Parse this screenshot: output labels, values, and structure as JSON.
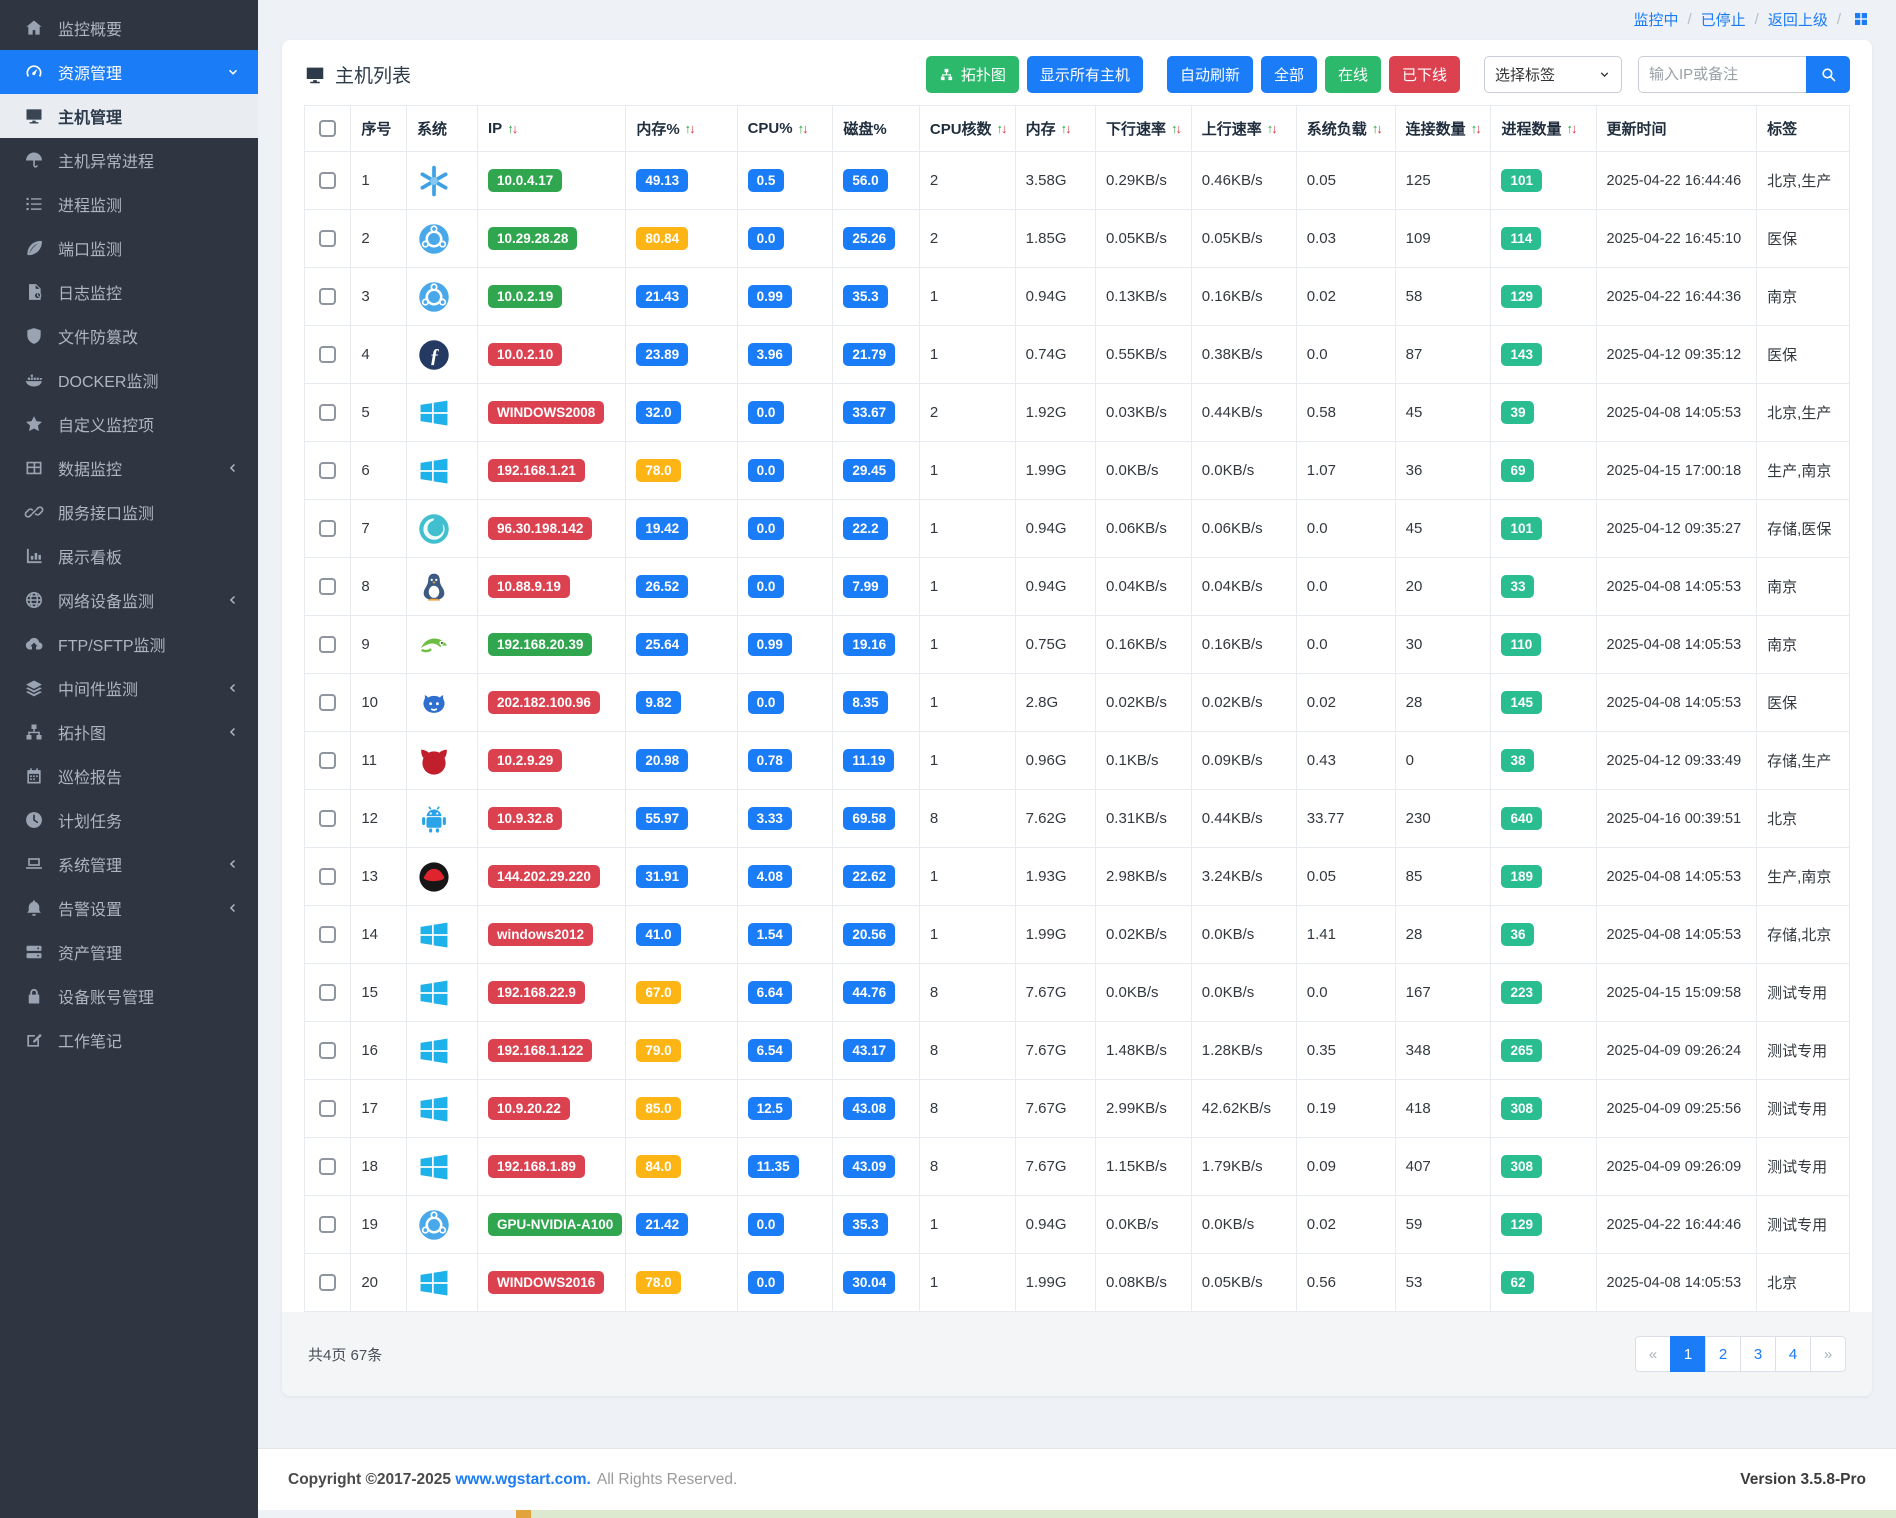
{
  "colors": {
    "sidebar_bg": "#2f3642",
    "accent_blue": "#1b7cf7",
    "badge_green": "#30a64f",
    "badge_red": "#dc4150",
    "badge_blue": "#1b7cf7",
    "badge_yellow": "#fdb515",
    "badge_teal": "#29bd8f",
    "button_green": "#2cb96c",
    "button_red": "#dc4150",
    "sort_up_green": "#28a745",
    "sort_down_red": "#dc3545"
  },
  "sidebar": {
    "items": [
      {
        "icon": "home",
        "label": "监控概要"
      },
      {
        "icon": "gauge",
        "label": "资源管理",
        "state": "active-parent",
        "chevron": "down"
      },
      {
        "icon": "monitor",
        "label": "主机管理",
        "state": "active-child"
      },
      {
        "icon": "umbrella",
        "label": "主机异常进程"
      },
      {
        "icon": "tasks",
        "label": "进程监测"
      },
      {
        "icon": "leaf",
        "label": "端口监测"
      },
      {
        "icon": "file",
        "label": "日志监控"
      },
      {
        "icon": "shield",
        "label": "文件防篡改"
      },
      {
        "icon": "docker",
        "label": "DOCKER监测"
      },
      {
        "icon": "star",
        "label": "自定义监控项"
      },
      {
        "icon": "table",
        "label": "数据监控",
        "chevron": "left"
      },
      {
        "icon": "link",
        "label": "服务接口监测"
      },
      {
        "icon": "board",
        "label": "展示看板"
      },
      {
        "icon": "globe",
        "label": "网络设备监测",
        "chevron": "left"
      },
      {
        "icon": "cloud",
        "label": "FTP/SFTP监测"
      },
      {
        "icon": "layers",
        "label": "中间件监测",
        "chevron": "left"
      },
      {
        "icon": "sitemap",
        "label": "拓扑图",
        "chevron": "left"
      },
      {
        "icon": "calendar",
        "label": "巡检报告"
      },
      {
        "icon": "clock",
        "label": "计划任务"
      },
      {
        "icon": "laptop",
        "label": "系统管理",
        "chevron": "left"
      },
      {
        "icon": "bell",
        "label": "告警设置",
        "chevron": "left"
      },
      {
        "icon": "server",
        "label": "资产管理"
      },
      {
        "icon": "lock",
        "label": "设备账号管理"
      },
      {
        "icon": "pencil",
        "label": "工作笔记"
      }
    ]
  },
  "topbar": {
    "links": [
      "监控中",
      "已停止",
      "返回上级"
    ],
    "grid_icon": "grid-icon"
  },
  "toolbar": {
    "title": "主机列表",
    "buttons": [
      {
        "label": "拓扑图",
        "color": "green",
        "icon": "sitemap"
      },
      {
        "label": "显示所有主机",
        "color": "blue"
      },
      {
        "label": "自动刷新",
        "color": "blue",
        "gap": true
      },
      {
        "label": "全部",
        "color": "blue"
      },
      {
        "label": "在线",
        "color": "green"
      },
      {
        "label": "已下线",
        "color": "red"
      }
    ],
    "tag_select_value": "选择标签",
    "search_placeholder": "输入IP或备注"
  },
  "table": {
    "columns": [
      {
        "label": "",
        "key": "check"
      },
      {
        "label": "序号"
      },
      {
        "label": "系统"
      },
      {
        "label": "IP",
        "sortable": true
      },
      {
        "label": "内存%",
        "sortable": true
      },
      {
        "label": "CPU%",
        "sortable": true
      },
      {
        "label": "磁盘%"
      },
      {
        "label": "CPU核数",
        "sortable": true
      },
      {
        "label": "内存",
        "sortable": true
      },
      {
        "label": "下行速率",
        "sortable": true
      },
      {
        "label": "上行速率",
        "sortable": true
      },
      {
        "label": "系统负载",
        "sortable": true
      },
      {
        "label": "连接数量",
        "sortable": true
      },
      {
        "label": "进程数量",
        "sortable": true
      },
      {
        "label": "更新时间"
      },
      {
        "label": "标签"
      }
    ],
    "rows": [
      {
        "num": "1",
        "os": "nixos",
        "ip": "10.0.4.17",
        "ip_color": "green",
        "mem_pct": "49.13",
        "mem_color": "blue",
        "cpu_pct": "0.5",
        "disk_pct": "56.0",
        "cores": "2",
        "mem": "3.58G",
        "down": "0.29KB/s",
        "up": "0.46KB/s",
        "load": "0.05",
        "conns": "125",
        "procs": "101",
        "time": "2025-04-22 16:44:46",
        "tag": "北京,生产"
      },
      {
        "num": "2",
        "os": "ubuntu",
        "ip": "10.29.28.28",
        "ip_color": "green",
        "mem_pct": "80.84",
        "mem_color": "yellow",
        "cpu_pct": "0.0",
        "disk_pct": "25.26",
        "cores": "2",
        "mem": "1.85G",
        "down": "0.05KB/s",
        "up": "0.05KB/s",
        "load": "0.03",
        "conns": "109",
        "procs": "114",
        "time": "2025-04-22 16:45:10",
        "tag": "医保"
      },
      {
        "num": "3",
        "os": "ubuntu",
        "ip": "10.0.2.19",
        "ip_color": "green",
        "mem_pct": "21.43",
        "mem_color": "blue",
        "cpu_pct": "0.99",
        "disk_pct": "35.3",
        "cores": "1",
        "mem": "0.94G",
        "down": "0.13KB/s",
        "up": "0.16KB/s",
        "load": "0.02",
        "conns": "58",
        "procs": "129",
        "time": "2025-04-22 16:44:36",
        "tag": "南京"
      },
      {
        "num": "4",
        "os": "fedora",
        "ip": "10.0.2.10",
        "ip_color": "red",
        "mem_pct": "23.89",
        "mem_color": "blue",
        "cpu_pct": "3.96",
        "disk_pct": "21.79",
        "cores": "1",
        "mem": "0.74G",
        "down": "0.55KB/s",
        "up": "0.38KB/s",
        "load": "0.0",
        "conns": "87",
        "procs": "143",
        "time": "2025-04-12 09:35:12",
        "tag": "医保"
      },
      {
        "num": "5",
        "os": "windows",
        "ip": "WINDOWS2008",
        "ip_color": "red",
        "mem_pct": "32.0",
        "mem_color": "blue",
        "cpu_pct": "0.0",
        "disk_pct": "33.67",
        "cores": "2",
        "mem": "1.92G",
        "down": "0.03KB/s",
        "up": "0.44KB/s",
        "load": "0.58",
        "conns": "45",
        "procs": "39",
        "time": "2025-04-08 14:05:53",
        "tag": "北京,生产"
      },
      {
        "num": "6",
        "os": "windows",
        "ip": "192.168.1.21",
        "ip_color": "red",
        "mem_pct": "78.0",
        "mem_color": "yellow",
        "cpu_pct": "0.0",
        "disk_pct": "29.45",
        "cores": "1",
        "mem": "1.99G",
        "down": "0.0KB/s",
        "up": "0.0KB/s",
        "load": "1.07",
        "conns": "36",
        "procs": "69",
        "time": "2025-04-15 17:00:18",
        "tag": "生产,南京"
      },
      {
        "num": "7",
        "os": "deepin",
        "ip": "96.30.198.142",
        "ip_color": "red",
        "mem_pct": "19.42",
        "mem_color": "blue",
        "cpu_pct": "0.0",
        "disk_pct": "22.2",
        "cores": "1",
        "mem": "0.94G",
        "down": "0.06KB/s",
        "up": "0.06KB/s",
        "load": "0.0",
        "conns": "45",
        "procs": "101",
        "time": "2025-04-12 09:35:27",
        "tag": "存储,医保"
      },
      {
        "num": "8",
        "os": "linux",
        "ip": "10.88.9.19",
        "ip_color": "red",
        "mem_pct": "26.52",
        "mem_color": "blue",
        "cpu_pct": "0.0",
        "disk_pct": "7.99",
        "cores": "1",
        "mem": "0.94G",
        "down": "0.04KB/s",
        "up": "0.04KB/s",
        "load": "0.0",
        "conns": "20",
        "procs": "33",
        "time": "2025-04-08 14:05:53",
        "tag": "南京"
      },
      {
        "num": "9",
        "os": "suse",
        "ip": "192.168.20.39",
        "ip_color": "green",
        "mem_pct": "25.64",
        "mem_color": "blue",
        "cpu_pct": "0.99",
        "disk_pct": "19.16",
        "cores": "1",
        "mem": "0.75G",
        "down": "0.16KB/s",
        "up": "0.16KB/s",
        "load": "0.0",
        "conns": "30",
        "procs": "110",
        "time": "2025-04-08 14:05:53",
        "tag": "南京"
      },
      {
        "num": "10",
        "os": "gnu",
        "ip": "202.182.100.96",
        "ip_color": "red",
        "mem_pct": "9.82",
        "mem_color": "blue",
        "cpu_pct": "0.0",
        "disk_pct": "8.35",
        "cores": "1",
        "mem": "2.8G",
        "down": "0.02KB/s",
        "up": "0.02KB/s",
        "load": "0.02",
        "conns": "28",
        "procs": "145",
        "time": "2025-04-08 14:05:53",
        "tag": "医保"
      },
      {
        "num": "11",
        "os": "freebsd",
        "ip": "10.2.9.29",
        "ip_color": "red",
        "mem_pct": "20.98",
        "mem_color": "blue",
        "cpu_pct": "0.78",
        "disk_pct": "11.19",
        "cores": "1",
        "mem": "0.96G",
        "down": "0.1KB/s",
        "up": "0.09KB/s",
        "load": "0.43",
        "conns": "0",
        "procs": "38",
        "time": "2025-04-12 09:33:49",
        "tag": "存储,生产"
      },
      {
        "num": "12",
        "os": "android",
        "ip": "10.9.32.8",
        "ip_color": "red",
        "mem_pct": "55.97",
        "mem_color": "blue",
        "cpu_pct": "3.33",
        "disk_pct": "69.58",
        "cores": "8",
        "mem": "7.62G",
        "down": "0.31KB/s",
        "up": "0.44KB/s",
        "load": "33.77",
        "conns": "230",
        "procs": "640",
        "time": "2025-04-16 00:39:51",
        "tag": "北京"
      },
      {
        "num": "13",
        "os": "redhat",
        "ip": "144.202.29.220",
        "ip_color": "red",
        "mem_pct": "31.91",
        "mem_color": "blue",
        "cpu_pct": "4.08",
        "disk_pct": "22.62",
        "cores": "1",
        "mem": "1.93G",
        "down": "2.98KB/s",
        "up": "3.24KB/s",
        "load": "0.05",
        "conns": "85",
        "procs": "189",
        "time": "2025-04-08 14:05:53",
        "tag": "生产,南京"
      },
      {
        "num": "14",
        "os": "windows",
        "ip": "windows2012",
        "ip_color": "red",
        "mem_pct": "41.0",
        "mem_color": "blue",
        "cpu_pct": "1.54",
        "disk_pct": "20.56",
        "cores": "1",
        "mem": "1.99G",
        "down": "0.02KB/s",
        "up": "0.0KB/s",
        "load": "1.41",
        "conns": "28",
        "procs": "36",
        "time": "2025-04-08 14:05:53",
        "tag": "存储,北京"
      },
      {
        "num": "15",
        "os": "windows",
        "ip": "192.168.22.9",
        "ip_color": "red",
        "mem_pct": "67.0",
        "mem_color": "yellow",
        "cpu_pct": "6.64",
        "disk_pct": "44.76",
        "cores": "8",
        "mem": "7.67G",
        "down": "0.0KB/s",
        "up": "0.0KB/s",
        "load": "0.0",
        "conns": "167",
        "procs": "223",
        "time": "2025-04-15 15:09:58",
        "tag": "测试专用"
      },
      {
        "num": "16",
        "os": "windows",
        "ip": "192.168.1.122",
        "ip_color": "red",
        "mem_pct": "79.0",
        "mem_color": "yellow",
        "cpu_pct": "6.54",
        "disk_pct": "43.17",
        "cores": "8",
        "mem": "7.67G",
        "down": "1.48KB/s",
        "up": "1.28KB/s",
        "load": "0.35",
        "conns": "348",
        "procs": "265",
        "time": "2025-04-09 09:26:24",
        "tag": "测试专用"
      },
      {
        "num": "17",
        "os": "windows",
        "ip": "10.9.20.22",
        "ip_color": "red",
        "mem_pct": "85.0",
        "mem_color": "yellow",
        "cpu_pct": "12.5",
        "disk_pct": "43.08",
        "cores": "8",
        "mem": "7.67G",
        "down": "2.99KB/s",
        "up": "42.62KB/s",
        "load": "0.19",
        "conns": "418",
        "procs": "308",
        "time": "2025-04-09 09:25:56",
        "tag": "测试专用"
      },
      {
        "num": "18",
        "os": "windows",
        "ip": "192.168.1.89",
        "ip_color": "red",
        "mem_pct": "84.0",
        "mem_color": "yellow",
        "cpu_pct": "11.35",
        "disk_pct": "43.09",
        "cores": "8",
        "mem": "7.67G",
        "down": "1.15KB/s",
        "up": "1.79KB/s",
        "load": "0.09",
        "conns": "407",
        "procs": "308",
        "time": "2025-04-09 09:26:09",
        "tag": "测试专用"
      },
      {
        "num": "19",
        "os": "ubuntu",
        "ip": "GPU-NVIDIA-A100",
        "ip_color": "green",
        "mem_pct": "21.42",
        "mem_color": "blue",
        "cpu_pct": "0.0",
        "disk_pct": "35.3",
        "cores": "1",
        "mem": "0.94G",
        "down": "0.0KB/s",
        "up": "0.0KB/s",
        "load": "0.02",
        "conns": "59",
        "procs": "129",
        "time": "2025-04-22 16:44:46",
        "tag": "测试专用"
      },
      {
        "num": "20",
        "os": "windows",
        "ip": "WINDOWS2016",
        "ip_color": "red",
        "mem_pct": "78.0",
        "mem_color": "yellow",
        "cpu_pct": "0.0",
        "disk_pct": "30.04",
        "cores": "1",
        "mem": "1.99G",
        "down": "0.08KB/s",
        "up": "0.05KB/s",
        "load": "0.56",
        "conns": "53",
        "procs": "62",
        "time": "2025-04-08 14:05:53",
        "tag": "北京"
      }
    ]
  },
  "pagination": {
    "summary": "共4页 67条",
    "items": [
      {
        "label": "«",
        "type": "nav"
      },
      {
        "label": "1",
        "type": "page",
        "active": true
      },
      {
        "label": "2",
        "type": "page"
      },
      {
        "label": "3",
        "type": "page"
      },
      {
        "label": "4",
        "type": "page"
      },
      {
        "label": "»",
        "type": "nav"
      }
    ]
  },
  "footer": {
    "copyright": "Copyright ©2017-2025",
    "link": "www.wgstart.com.",
    "rights": "All Rights Reserved.",
    "version": "Version 3.5.8-Pro"
  }
}
